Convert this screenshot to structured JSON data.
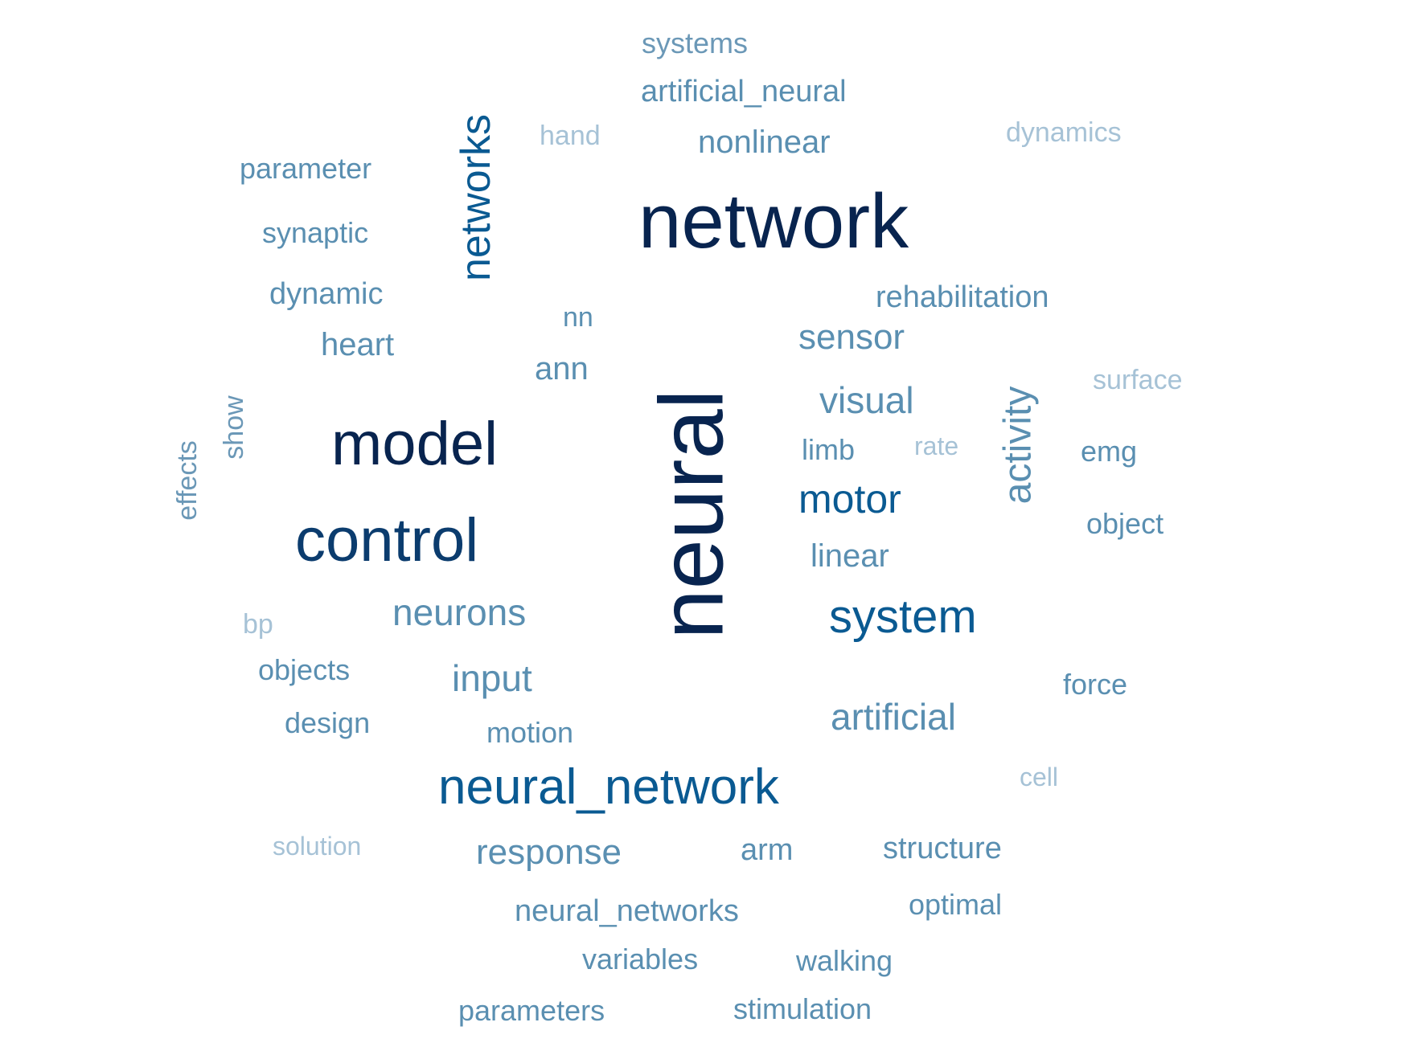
{
  "palette": {
    "darkest": "#08244f",
    "dark": "#0b3c6e",
    "strong": "#0a5a92",
    "medium": "#2e6f9c",
    "soft": "#5a8fb1",
    "light": "#6b98b7",
    "pale": "#a6c2d6"
  },
  "words": [
    {
      "text": "network",
      "tone": "darkest"
    },
    {
      "text": "neural",
      "tone": "darkest"
    },
    {
      "text": "model",
      "tone": "darkest"
    },
    {
      "text": "control",
      "tone": "dark"
    },
    {
      "text": "neural_network",
      "tone": "strong"
    },
    {
      "text": "system",
      "tone": "strong"
    },
    {
      "text": "networks",
      "tone": "strong"
    },
    {
      "text": "motor",
      "tone": "strong"
    },
    {
      "text": "neurons",
      "tone": "soft"
    },
    {
      "text": "input",
      "tone": "soft"
    },
    {
      "text": "artificial",
      "tone": "soft"
    },
    {
      "text": "activity",
      "tone": "soft"
    },
    {
      "text": "visual",
      "tone": "soft"
    },
    {
      "text": "sensor",
      "tone": "soft"
    },
    {
      "text": "response",
      "tone": "soft"
    },
    {
      "text": "linear",
      "tone": "soft"
    },
    {
      "text": "limb",
      "tone": "soft"
    },
    {
      "text": "systems",
      "tone": "light"
    },
    {
      "text": "artificial_neural",
      "tone": "soft"
    },
    {
      "text": "nonlinear",
      "tone": "soft"
    },
    {
      "text": "hand",
      "tone": "pale"
    },
    {
      "text": "dynamics",
      "tone": "pale"
    },
    {
      "text": "parameter",
      "tone": "soft"
    },
    {
      "text": "synaptic",
      "tone": "soft"
    },
    {
      "text": "dynamic",
      "tone": "soft"
    },
    {
      "text": "heart",
      "tone": "soft"
    },
    {
      "text": "nn",
      "tone": "soft"
    },
    {
      "text": "ann",
      "tone": "soft"
    },
    {
      "text": "rehabilitation",
      "tone": "soft"
    },
    {
      "text": "surface",
      "tone": "pale"
    },
    {
      "text": "show",
      "tone": "light"
    },
    {
      "text": "effects",
      "tone": "light"
    },
    {
      "text": "rate",
      "tone": "pale"
    },
    {
      "text": "emg",
      "tone": "soft"
    },
    {
      "text": "object",
      "tone": "soft"
    },
    {
      "text": "bp",
      "tone": "pale"
    },
    {
      "text": "objects",
      "tone": "soft"
    },
    {
      "text": "design",
      "tone": "soft"
    },
    {
      "text": "motion",
      "tone": "soft"
    },
    {
      "text": "force",
      "tone": "soft"
    },
    {
      "text": "cell",
      "tone": "pale"
    },
    {
      "text": "solution",
      "tone": "pale"
    },
    {
      "text": "arm",
      "tone": "soft"
    },
    {
      "text": "structure",
      "tone": "soft"
    },
    {
      "text": "neural_networks",
      "tone": "soft"
    },
    {
      "text": "optimal",
      "tone": "soft"
    },
    {
      "text": "variables",
      "tone": "soft"
    },
    {
      "text": "walking",
      "tone": "soft"
    },
    {
      "text": "parameters",
      "tone": "soft"
    },
    {
      "text": "stimulation",
      "tone": "soft"
    }
  ]
}
